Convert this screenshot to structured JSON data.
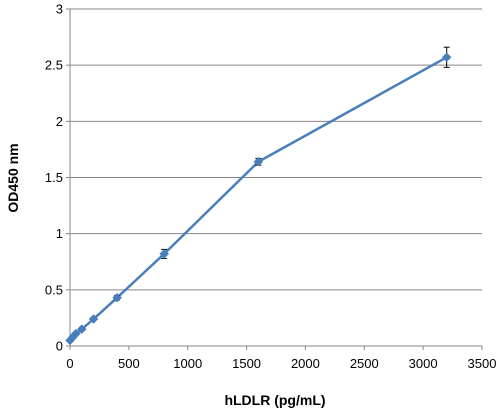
{
  "chart_data": {
    "type": "line",
    "title": "",
    "xlabel": "hLDLR (pg/mL)",
    "ylabel": "OD450 nm",
    "xlim": [
      0,
      3500
    ],
    "ylim": [
      0,
      3
    ],
    "x_ticks": [
      0,
      500,
      1000,
      1500,
      2000,
      2500,
      3000,
      3500
    ],
    "y_ticks": [
      0,
      0.5,
      1,
      1.5,
      2,
      2.5,
      3
    ],
    "y_tick_labels": [
      "0",
      "0.5",
      "1",
      "1.5",
      "2",
      "2.5",
      "3"
    ],
    "grid": "horizontal",
    "legend": "none",
    "series": [
      {
        "x": [
          0,
          25,
          50,
          100,
          200,
          400,
          800,
          1600,
          3200
        ],
        "y": [
          0.05,
          0.08,
          0.11,
          0.15,
          0.24,
          0.43,
          0.82,
          1.64,
          2.57
        ],
        "error": [
          0.01,
          0.01,
          0.01,
          0.01,
          0.01,
          0.02,
          0.04,
          0.03,
          0.09
        ],
        "color": "#4a7ebb"
      }
    ]
  }
}
